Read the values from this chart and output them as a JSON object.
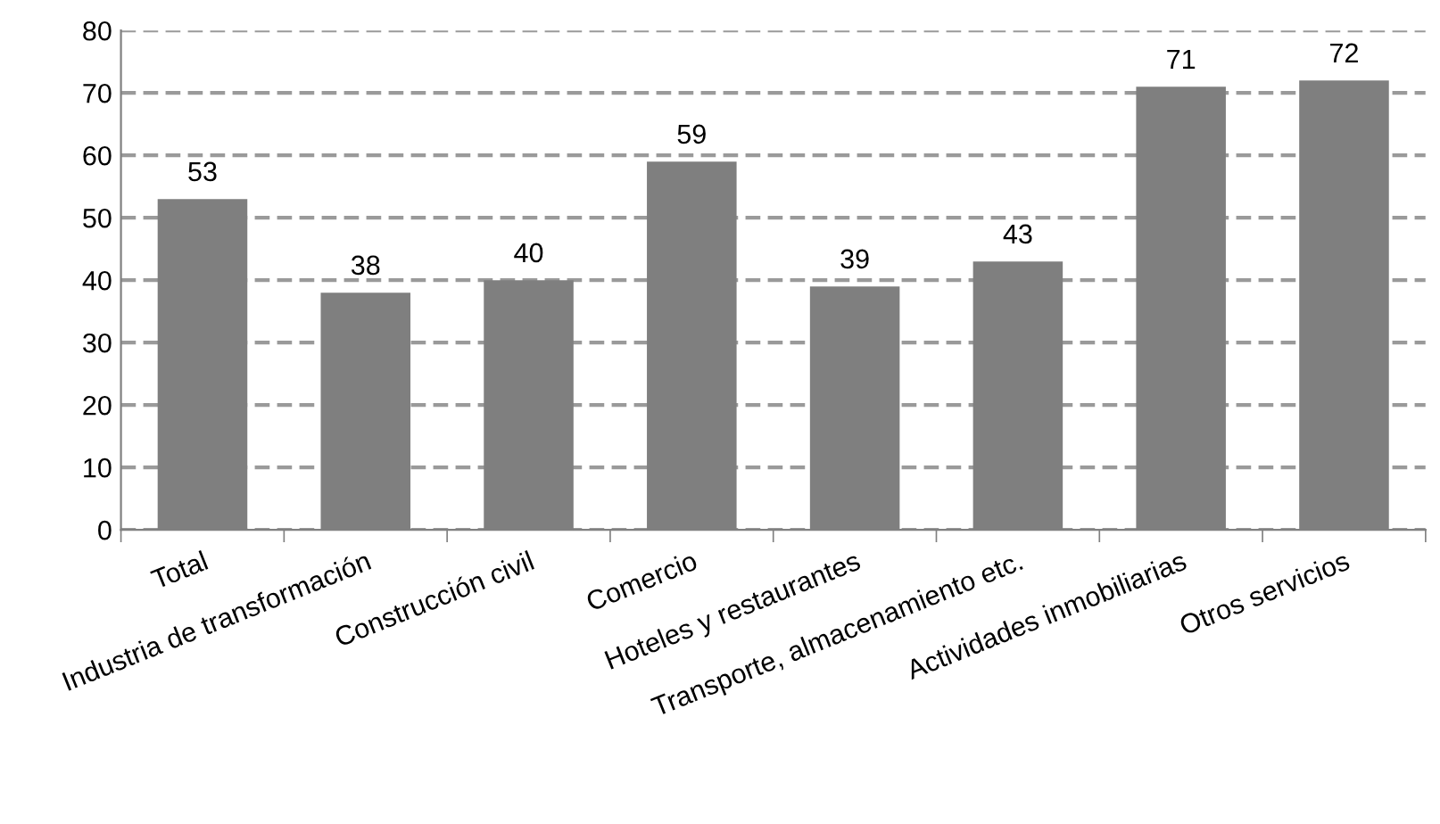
{
  "chart_data": {
    "type": "bar",
    "categories": [
      "Total",
      "Industria de transformación",
      "Construcción civil",
      "Comercio",
      "Hoteles y restaurantes",
      "Transporte, almacenamiento etc.",
      "Actividades inmobiliarias",
      "Otros servicios"
    ],
    "values": [
      53,
      38,
      40,
      59,
      39,
      43,
      71,
      72
    ],
    "color": "#7f7f7f",
    "ylim": [
      0,
      80
    ],
    "yticks": [
      0,
      10,
      20,
      30,
      40,
      50,
      60,
      70,
      80
    ],
    "grid": "y",
    "line_style": "dashed",
    "data_labels": true
  }
}
